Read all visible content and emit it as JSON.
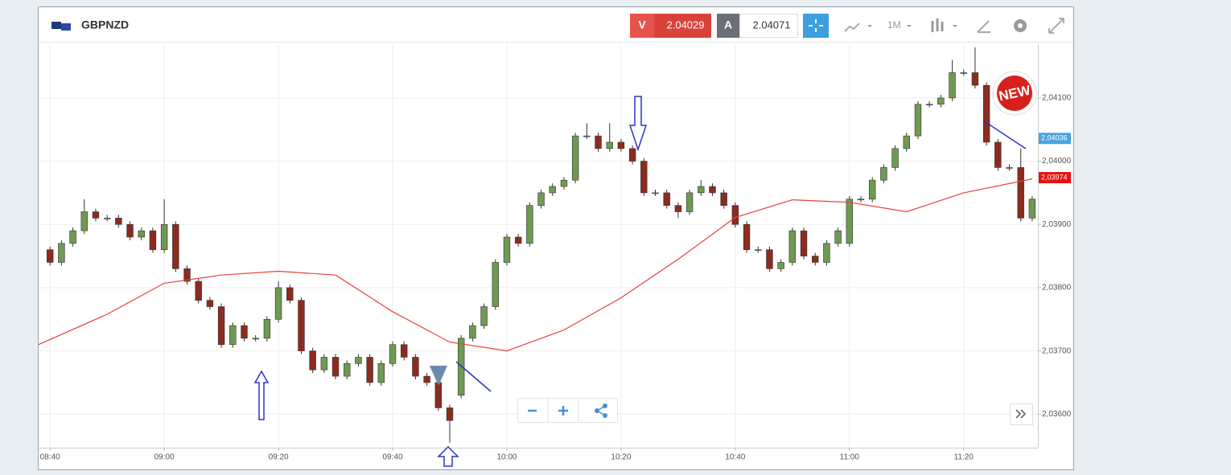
{
  "header": {
    "symbol": "GBPNZD",
    "sell_label": "V",
    "sell_price": "2.04029",
    "buy_label": "A",
    "buy_price": "2.04071",
    "timeframe": "1M"
  },
  "badge": "NEW",
  "chart_data": {
    "type": "candlestick",
    "x": [
      "08:40",
      "08:42",
      "08:44",
      "08:46",
      "08:48",
      "08:50",
      "08:52",
      "08:54",
      "08:56",
      "08:58",
      "09:00",
      "09:02",
      "09:04",
      "09:06",
      "09:08",
      "09:10",
      "09:12",
      "09:14",
      "09:16",
      "09:18",
      "09:20",
      "09:22",
      "09:24",
      "09:26",
      "09:28",
      "09:30",
      "09:32",
      "09:34",
      "09:36",
      "09:38",
      "09:40",
      "09:42",
      "09:44",
      "09:46",
      "09:48",
      "09:50",
      "09:52",
      "09:54",
      "09:56",
      "09:58",
      "10:00",
      "10:02",
      "10:04",
      "10:06",
      "10:08",
      "10:10",
      "10:12",
      "10:14",
      "10:16",
      "10:18",
      "10:20",
      "10:22",
      "10:24",
      "10:26",
      "10:28",
      "10:30",
      "10:32",
      "10:34",
      "10:36",
      "10:38",
      "10:40",
      "10:42",
      "10:44",
      "10:46",
      "10:48",
      "10:50",
      "10:52",
      "10:54",
      "10:56",
      "10:58",
      "11:00",
      "11:02",
      "11:04",
      "11:06",
      "11:08",
      "11:10",
      "11:12",
      "11:14",
      "11:16",
      "11:18",
      "11:20",
      "11:22",
      "11:24",
      "11:26",
      "11:28",
      "11:30",
      "11:32"
    ],
    "open": [
      2.0386,
      2.0384,
      2.0387,
      2.0389,
      2.0392,
      2.0391,
      2.0391,
      2.039,
      2.0388,
      2.0389,
      2.0386,
      2.039,
      2.0383,
      2.0381,
      2.0378,
      2.0377,
      2.0371,
      2.0374,
      2.0372,
      2.0372,
      2.0375,
      2.038,
      2.0378,
      2.037,
      2.0367,
      2.0369,
      2.0366,
      2.0368,
      2.0369,
      2.0365,
      2.0368,
      2.0371,
      2.0369,
      2.0366,
      2.0365,
      2.0361,
      2.0363,
      2.0372,
      2.0374,
      2.0377,
      2.0384,
      2.0388,
      2.0387,
      2.0393,
      2.0395,
      2.0396,
      2.0397,
      2.0404,
      2.0404,
      2.0402,
      2.0403,
      2.0402,
      2.04,
      2.0395,
      2.0395,
      2.0393,
      2.0392,
      2.0395,
      2.0396,
      2.0395,
      2.0393,
      2.039,
      2.0386,
      2.0386,
      2.0383,
      2.0384,
      2.0389,
      2.0385,
      2.0384,
      2.0387,
      2.0387,
      2.0394,
      2.0394,
      2.0397,
      2.0399,
      2.0402,
      2.0404,
      2.0409,
      2.0409,
      2.041,
      2.0414,
      2.0414,
      2.0412,
      2.0403,
      2.0399,
      2.0399,
      2.0391
    ],
    "high": [
      2.03865,
      2.03875,
      2.03895,
      2.0394,
      2.03925,
      2.03915,
      2.03915,
      2.03905,
      2.03895,
      2.03895,
      2.0394,
      2.03905,
      2.03835,
      2.03815,
      2.03785,
      2.03775,
      2.03745,
      2.03745,
      2.03725,
      2.03755,
      2.0381,
      2.03805,
      2.03785,
      2.03705,
      2.03695,
      2.03695,
      2.03685,
      2.03695,
      2.03695,
      2.03685,
      2.03715,
      2.03715,
      2.03695,
      2.03665,
      2.03655,
      2.03615,
      2.03725,
      2.03745,
      2.03775,
      2.03845,
      2.03885,
      2.03885,
      2.03935,
      2.03955,
      2.03965,
      2.03975,
      2.04045,
      2.0406,
      2.04045,
      2.0406,
      2.04035,
      2.04025,
      2.04005,
      2.03955,
      2.03955,
      2.03935,
      2.03955,
      2.0397,
      2.03965,
      2.03955,
      2.03935,
      2.03905,
      2.03865,
      2.03865,
      2.03845,
      2.03895,
      2.03895,
      2.03855,
      2.03875,
      2.03895,
      2.03945,
      2.03945,
      2.03975,
      2.03995,
      2.04025,
      2.04045,
      2.04095,
      2.04095,
      2.04105,
      2.0416,
      2.04145,
      2.0418,
      2.04125,
      2.04035,
      2.03995,
      2.0402,
      2.03945
    ],
    "low": [
      2.03835,
      2.03835,
      2.03865,
      2.03885,
      2.03905,
      2.03905,
      2.03895,
      2.03875,
      2.03875,
      2.03855,
      2.03855,
      2.03825,
      2.03805,
      2.03775,
      2.03765,
      2.03705,
      2.03705,
      2.03715,
      2.03715,
      2.03715,
      2.03745,
      2.03775,
      2.03695,
      2.03665,
      2.03665,
      2.03655,
      2.03655,
      2.03675,
      2.03645,
      2.03645,
      2.03675,
      2.03685,
      2.03655,
      2.03645,
      2.03605,
      2.03555,
      2.03625,
      2.03715,
      2.03735,
      2.03765,
      2.03835,
      2.03865,
      2.03865,
      2.03925,
      2.03945,
      2.03955,
      2.03965,
      2.04035,
      2.04015,
      2.04015,
      2.04015,
      2.03995,
      2.03945,
      2.03945,
      2.03925,
      2.0391,
      2.03915,
      2.03945,
      2.03945,
      2.03925,
      2.03895,
      2.03855,
      2.03855,
      2.03825,
      2.03825,
      2.03835,
      2.03845,
      2.03835,
      2.03835,
      2.03865,
      2.03865,
      2.03935,
      2.03935,
      2.03965,
      2.03985,
      2.04015,
      2.04035,
      2.04085,
      2.04085,
      2.04095,
      2.04135,
      2.04115,
      2.04025,
      2.03985,
      2.03985,
      2.03905,
      2.03905
    ],
    "close": [
      2.0384,
      2.0387,
      2.0389,
      2.0392,
      2.0391,
      2.0391,
      2.039,
      2.0388,
      2.0389,
      2.0386,
      2.039,
      2.0383,
      2.0381,
      2.0378,
      2.0377,
      2.0371,
      2.0374,
      2.0372,
      2.0372,
      2.0375,
      2.038,
      2.0378,
      2.037,
      2.0367,
      2.0369,
      2.0366,
      2.0368,
      2.0369,
      2.0365,
      2.0368,
      2.0371,
      2.0369,
      2.0366,
      2.0365,
      2.0361,
      2.0359,
      2.0372,
      2.0374,
      2.0377,
      2.0384,
      2.0388,
      2.0387,
      2.0393,
      2.0395,
      2.0396,
      2.0397,
      2.0404,
      2.0404,
      2.0402,
      2.0403,
      2.0402,
      2.04,
      2.0395,
      2.0395,
      2.0393,
      2.0392,
      2.0395,
      2.0396,
      2.0395,
      2.0393,
      2.039,
      2.0386,
      2.0386,
      2.0383,
      2.0384,
      2.0389,
      2.0385,
      2.0384,
      2.0387,
      2.0389,
      2.0394,
      2.0394,
      2.0397,
      2.0399,
      2.0402,
      2.0404,
      2.0409,
      2.0409,
      2.041,
      2.0414,
      2.0414,
      2.0412,
      2.0403,
      2.0399,
      2.0399,
      2.0391,
      2.0394
    ],
    "up_color": "#6e9a52",
    "down_color": "#8c2b1f",
    "moving_average": {
      "color": "#e8413a",
      "x": [
        "08:38",
        "08:50",
        "09:00",
        "09:10",
        "09:20",
        "09:30",
        "09:40",
        "09:50",
        "10:00",
        "10:10",
        "10:20",
        "10:30",
        "10:40",
        "10:50",
        "11:00",
        "11:10",
        "11:20",
        "11:32"
      ],
      "values": [
        2.0371,
        2.03758,
        2.03807,
        2.0382,
        2.03826,
        2.0382,
        2.03762,
        2.03714,
        2.037,
        2.03733,
        2.03784,
        2.03845,
        2.03911,
        2.03939,
        2.03935,
        2.0392,
        2.0395,
        2.03972
      ]
    },
    "xlim": [
      "08:38",
      "11:33"
    ],
    "xticks": [
      "08:40",
      "09:00",
      "09:20",
      "09:40",
      "10:00",
      "10:20",
      "10:40",
      "11:00",
      "11:20"
    ],
    "ylim": [
      2.03547,
      2.04185
    ],
    "yticks": [
      {
        "value": 2.036,
        "label": "2,03600"
      },
      {
        "value": 2.037,
        "label": "2,03700"
      },
      {
        "value": 2.038,
        "label": "2,03800"
      },
      {
        "value": 2.039,
        "label": "2,03900"
      },
      {
        "value": 2.04,
        "label": "2,04000"
      },
      {
        "value": 2.041,
        "label": "2,04100"
      }
    ],
    "grid": true,
    "price_tags": [
      {
        "value": 2.04036,
        "label": "2,04036",
        "color": "#4aa3df"
      },
      {
        "value": 2.03974,
        "label": "2,03974",
        "color": "#e3140f"
      }
    ]
  }
}
